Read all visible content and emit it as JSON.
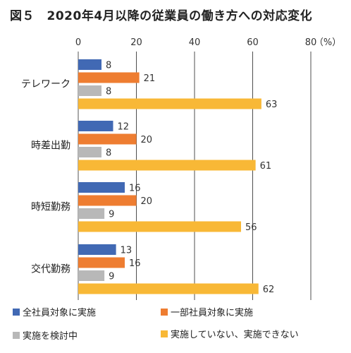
{
  "title": "図５　2020年4月以降の従業員の働き方への対応変化",
  "chart_data": {
    "type": "bar",
    "orientation": "horizontal",
    "unit": "（%）",
    "xlim": [
      0,
      80
    ],
    "ticks": [
      "0",
      "20",
      "40",
      "60",
      "80"
    ],
    "grid": true,
    "legend_position": "bottom",
    "categories": [
      "テレワーク",
      "時差出勤",
      "時短勤務",
      "交代勤務"
    ],
    "series": [
      {
        "name": "全社員対象に実施",
        "color": "#4169b4",
        "values": [
          8,
          12,
          16,
          13
        ]
      },
      {
        "name": "一部社員対象に実施",
        "color": "#ee7d31",
        "values": [
          21,
          20,
          20,
          16
        ]
      },
      {
        "name": "実施を検討中",
        "color": "#b8b8b8",
        "values": [
          8,
          8,
          9,
          9
        ]
      },
      {
        "name": "実施していない、実施できない",
        "color": "#f8b836",
        "values": [
          63,
          61,
          56,
          62
        ]
      }
    ]
  }
}
